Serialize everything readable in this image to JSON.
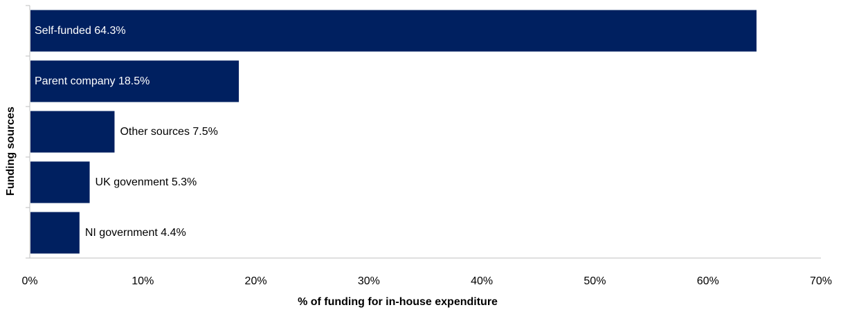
{
  "chart_data": {
    "type": "bar",
    "orientation": "horizontal",
    "categories": [
      "Self-funded",
      "Parent company",
      "Other sources",
      "UK govenment",
      "NI government"
    ],
    "values": [
      64.3,
      18.5,
      7.5,
      5.3,
      4.4
    ],
    "bar_labels": [
      "Self-funded 64.3%",
      "Parent company 18.5%",
      "Other sources 7.5%",
      "UK govenment 5.3%",
      "NI government 4.4%"
    ],
    "xlabel": "% of funding for in-house expenditure",
    "ylabel": "Funding sources",
    "xlim": [
      0,
      70
    ],
    "x_ticks": [
      0,
      10,
      20,
      30,
      40,
      50,
      60,
      70
    ],
    "x_tick_labels": [
      "0%",
      "10%",
      "20%",
      "30%",
      "40%",
      "50%",
      "60%",
      "70%"
    ],
    "grid": false,
    "legend": "none",
    "bar_color": "#002060",
    "label_color_inside": "#ffffff",
    "label_color_outside": "#000000"
  }
}
